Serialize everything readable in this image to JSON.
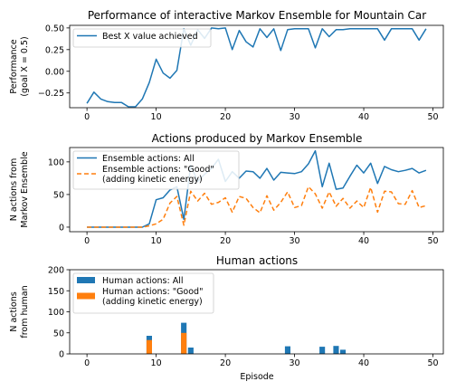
{
  "chart_data": [
    {
      "type": "line",
      "title": "Performance of interactive Markov Ensemble for Mountain Car",
      "ylabel_lines": [
        "Performance",
        "(goal X = 0.5)"
      ],
      "xlim": [
        -2.5,
        51.5
      ],
      "ylim": [
        -0.42,
        0.53
      ],
      "xticks": [
        "0",
        "10",
        "20",
        "30",
        "40",
        "50"
      ],
      "yticks": [
        "0.50",
        "0.25",
        "0.00",
        "−0.25"
      ],
      "ytick_values": [
        0.5,
        0.25,
        0.0,
        -0.25
      ],
      "legend_position": "upper left",
      "series": [
        {
          "name": "Best X value achieved",
          "color": "#1f77b4",
          "style": "solid",
          "x": [
            0,
            1,
            2,
            3,
            4,
            5,
            6,
            7,
            8,
            9,
            10,
            11,
            12,
            13,
            14,
            15,
            16,
            17,
            18,
            19,
            20,
            21,
            22,
            23,
            24,
            25,
            26,
            27,
            28,
            29,
            30,
            31,
            32,
            33,
            34,
            35,
            36,
            37,
            38,
            39,
            40,
            41,
            42,
            43,
            44,
            45,
            46,
            47,
            48,
            49
          ],
          "values": [
            -0.37,
            -0.24,
            -0.32,
            -0.35,
            -0.36,
            -0.36,
            -0.41,
            -0.41,
            -0.32,
            -0.13,
            0.14,
            -0.02,
            -0.08,
            0.01,
            0.49,
            0.3,
            0.48,
            0.38,
            0.5,
            0.49,
            0.5,
            0.25,
            0.47,
            0.34,
            0.28,
            0.49,
            0.39,
            0.49,
            0.24,
            0.48,
            0.49,
            0.49,
            0.49,
            0.27,
            0.49,
            0.4,
            0.48,
            0.48,
            0.49,
            0.49,
            0.49,
            0.49,
            0.49,
            0.36,
            0.49,
            0.49,
            0.49,
            0.49,
            0.36,
            0.49
          ]
        }
      ]
    },
    {
      "type": "line",
      "title": "Actions produced by Markov Ensemble",
      "ylabel_lines": [
        "N actions from",
        "Markov Ensemble"
      ],
      "xlim": [
        -2.5,
        51.5
      ],
      "ylim": [
        -7,
        122
      ],
      "xticks": [
        "0",
        "10",
        "20",
        "30",
        "40",
        "50"
      ],
      "yticks": [
        "100",
        "50",
        "0"
      ],
      "ytick_values": [
        100,
        50,
        0
      ],
      "legend_position": "upper left",
      "series": [
        {
          "name": "Ensemble actions: All",
          "color": "#1f77b4",
          "style": "solid",
          "x": [
            0,
            1,
            2,
            3,
            4,
            5,
            6,
            7,
            8,
            9,
            10,
            11,
            12,
            13,
            14,
            15,
            16,
            17,
            18,
            19,
            20,
            21,
            22,
            23,
            24,
            25,
            26,
            27,
            28,
            29,
            30,
            31,
            32,
            33,
            34,
            35,
            36,
            37,
            38,
            39,
            40,
            41,
            42,
            43,
            44,
            45,
            46,
            47,
            48,
            49
          ],
          "values": [
            0,
            0,
            0,
            0,
            0,
            0,
            0,
            0,
            0,
            5,
            42,
            45,
            57,
            62,
            12,
            95,
            70,
            81,
            90,
            104,
            70,
            85,
            75,
            86,
            85,
            75,
            90,
            72,
            84,
            83,
            82,
            85,
            97,
            117,
            62,
            98,
            58,
            60,
            78,
            95,
            83,
            98,
            67,
            93,
            88,
            85,
            87,
            90,
            83,
            87
          ]
        },
        {
          "name_lines": [
            "Ensemble actions: \"Good\"",
            "(adding kinetic energy)"
          ],
          "color": "#ff7f0e",
          "style": "dashed",
          "x": [
            0,
            1,
            2,
            3,
            4,
            5,
            6,
            7,
            8,
            9,
            10,
            11,
            12,
            13,
            14,
            15,
            16,
            17,
            18,
            19,
            20,
            21,
            22,
            23,
            24,
            25,
            26,
            27,
            28,
            29,
            30,
            31,
            32,
            33,
            34,
            35,
            36,
            37,
            38,
            39,
            40,
            41,
            42,
            43,
            44,
            45,
            46,
            47,
            48,
            49
          ],
          "values": [
            0,
            0,
            0,
            0,
            0,
            0,
            0,
            0,
            0,
            2,
            5,
            12,
            37,
            47,
            3,
            55,
            40,
            52,
            35,
            38,
            45,
            23,
            47,
            44,
            30,
            22,
            48,
            26,
            38,
            54,
            30,
            33,
            62,
            51,
            29,
            54,
            32,
            44,
            29,
            40,
            30,
            61,
            23,
            55,
            54,
            36,
            35,
            56,
            30,
            33
          ]
        }
      ]
    },
    {
      "type": "bar",
      "title": "Human actions",
      "ylabel_lines": [
        "N actions",
        "from human"
      ],
      "xlabel": "Episode",
      "xlim": [
        -2.5,
        51.5
      ],
      "ylim": [
        0,
        200
      ],
      "xticks": [
        "0",
        "10",
        "20",
        "30",
        "40",
        "50"
      ],
      "yticks": [
        "200",
        "150",
        "100",
        "50",
        "0"
      ],
      "ytick_values": [
        200,
        150,
        100,
        50,
        0
      ],
      "legend_position": "upper left",
      "series": [
        {
          "name": "Human actions: All",
          "color": "#1f77b4",
          "x": [
            9,
            14,
            15,
            29,
            34,
            36,
            37
          ],
          "values": [
            43,
            74,
            15,
            18,
            17,
            19,
            10
          ]
        },
        {
          "name_lines": [
            "Human actions: \"Good\"",
            "(adding kinetic energy)"
          ],
          "color": "#ff7f0e",
          "x": [
            9,
            14
          ],
          "values": [
            33,
            50
          ]
        }
      ]
    }
  ]
}
